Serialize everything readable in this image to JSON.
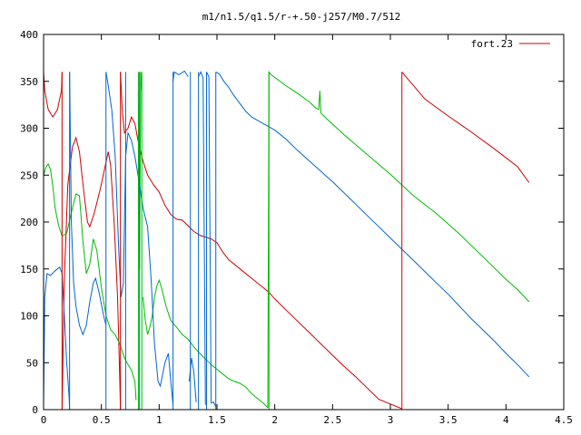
{
  "chart_data": {
    "type": "line",
    "title": "m1/n1.5/q1.5/r-+.50-j257/M0.7/512",
    "xlabel": "",
    "ylabel": "",
    "xlim": [
      0,
      4.5
    ],
    "ylim": [
      0,
      400
    ],
    "x_ticks": [
      0,
      0.5,
      1,
      1.5,
      2,
      2.5,
      3,
      3.5,
      4,
      4.5
    ],
    "x_tick_labels": [
      "0",
      "0.5",
      "1",
      "1.5",
      "2",
      "2.5",
      "3",
      "3.5",
      "4",
      "4.5"
    ],
    "y_ticks": [
      0,
      50,
      100,
      150,
      200,
      250,
      300,
      350,
      400
    ],
    "y_tick_labels": [
      "0",
      "50",
      "100",
      "150",
      "200",
      "250",
      "300",
      "350",
      "400"
    ],
    "grid": false,
    "legend": {
      "position": "top-right",
      "entries": [
        "fort.23"
      ]
    },
    "series": [
      {
        "name": "fort.23",
        "color": "#cc0000",
        "segments": [
          [
            [
              0.0,
              360
            ],
            [
              0.01,
              340
            ],
            [
              0.04,
              320
            ],
            [
              0.08,
              312
            ],
            [
              0.12,
              320
            ],
            [
              0.155,
              340
            ],
            [
              0.16,
              360
            ]
          ],
          [
            [
              0.16,
              0
            ],
            [
              0.18,
              140
            ],
            [
              0.21,
              240
            ],
            [
              0.25,
              280
            ],
            [
              0.28,
              290
            ],
            [
              0.31,
              275
            ],
            [
              0.35,
              230
            ],
            [
              0.38,
              200
            ],
            [
              0.4,
              195
            ],
            [
              0.44,
              210
            ],
            [
              0.49,
              235
            ],
            [
              0.53,
              258
            ],
            [
              0.56,
              275
            ],
            [
              0.58,
              260
            ],
            [
              0.61,
              200
            ],
            [
              0.64,
              120
            ],
            [
              0.66,
              30
            ],
            [
              0.665,
              0
            ]
          ],
          [
            [
              0.665,
              360
            ],
            [
              0.68,
              320
            ],
            [
              0.7,
              295
            ],
            [
              0.73,
              300
            ],
            [
              0.76,
              312
            ],
            [
              0.79,
              305
            ],
            [
              0.82,
              285
            ],
            [
              0.86,
              265
            ],
            [
              0.9,
              250
            ],
            [
              0.95,
              240
            ],
            [
              1.0,
              232
            ],
            [
              1.05,
              218
            ],
            [
              1.1,
              208
            ],
            [
              1.15,
              203
            ],
            [
              1.2,
              202
            ],
            [
              1.25,
              196
            ],
            [
              1.3,
              190
            ],
            [
              1.35,
              186
            ],
            [
              1.4,
              184
            ],
            [
              1.45,
              182
            ],
            [
              1.5,
              178
            ],
            [
              1.55,
              168
            ],
            [
              1.6,
              160
            ],
            [
              1.7,
              150
            ],
            [
              1.8,
              140
            ],
            [
              1.9,
              130
            ],
            [
              1.95,
              125
            ],
            [
              2.0,
              118
            ],
            [
              2.1,
              106
            ],
            [
              2.2,
              94
            ],
            [
              2.3,
              82
            ],
            [
              2.4,
              70
            ],
            [
              2.5,
              58
            ],
            [
              2.6,
              46
            ],
            [
              2.7,
              35
            ],
            [
              2.8,
              23
            ],
            [
              2.9,
              11
            ],
            [
              3.0,
              6
            ],
            [
              3.1,
              1
            ]
          ],
          [
            [
              3.1,
              360
            ],
            [
              3.3,
              331
            ],
            [
              3.5,
              313
            ],
            [
              3.7,
              296
            ],
            [
              3.9,
              278
            ],
            [
              4.1,
              259
            ],
            [
              4.2,
              242
            ]
          ]
        ]
      },
      {
        "name": "",
        "color": "#00bb00",
        "segments": [
          [
            [
              0.0,
              250
            ],
            [
              0.02,
              258
            ],
            [
              0.04,
              262
            ],
            [
              0.06,
              256
            ],
            [
              0.08,
              238
            ],
            [
              0.1,
              215
            ],
            [
              0.13,
              196
            ],
            [
              0.16,
              185
            ],
            [
              0.2,
              188
            ],
            [
              0.24,
              210
            ],
            [
              0.28,
              230
            ],
            [
              0.31,
              228
            ],
            [
              0.34,
              180
            ],
            [
              0.37,
              145
            ],
            [
              0.4,
              155
            ],
            [
              0.43,
              182
            ],
            [
              0.46,
              170
            ],
            [
              0.5,
              130
            ],
            [
              0.54,
              100
            ],
            [
              0.58,
              85
            ],
            [
              0.62,
              80
            ],
            [
              0.66,
              70
            ],
            [
              0.7,
              55
            ],
            [
              0.73,
              48
            ],
            [
              0.76,
              42
            ],
            [
              0.79,
              30
            ],
            [
              0.8,
              10
            ]
          ],
          [
            [
              0.82,
              340
            ],
            [
              0.83,
              150
            ],
            [
              0.84,
              360
            ],
            [
              0.85,
              340
            ]
          ],
          [
            [
              0.86,
              120
            ],
            [
              0.88,
              95
            ],
            [
              0.9,
              80
            ],
            [
              0.92,
              88
            ],
            [
              0.94,
              100
            ],
            [
              0.96,
              120
            ],
            [
              0.98,
              132
            ],
            [
              1.0,
              138
            ],
            [
              1.02,
              130
            ],
            [
              1.06,
              110
            ],
            [
              1.1,
              95
            ],
            [
              1.15,
              88
            ],
            [
              1.2,
              80
            ],
            [
              1.25,
              75
            ],
            [
              1.3,
              67
            ],
            [
              1.35,
              60
            ],
            [
              1.4,
              54
            ],
            [
              1.45,
              48
            ],
            [
              1.5,
              43
            ],
            [
              1.55,
              38
            ],
            [
              1.6,
              33
            ],
            [
              1.65,
              30
            ],
            [
              1.7,
              28
            ],
            [
              1.75,
              24
            ],
            [
              1.8,
              17
            ],
            [
              1.85,
              12
            ],
            [
              1.9,
              7
            ],
            [
              1.94,
              2
            ]
          ],
          [
            [
              1.94,
              2
            ],
            [
              1.95,
              360
            ],
            [
              1.97,
              357
            ],
            [
              2.1,
              345
            ],
            [
              2.2,
              337
            ],
            [
              2.3,
              328
            ],
            [
              2.35,
              322
            ],
            [
              2.38,
              320
            ],
            [
              2.39,
              340
            ],
            [
              2.4,
              316
            ],
            [
              2.45,
              310
            ],
            [
              2.6,
              293
            ],
            [
              2.8,
              272
            ],
            [
              3.0,
              251
            ],
            [
              3.2,
              228
            ],
            [
              3.4,
              209
            ],
            [
              3.6,
              187
            ],
            [
              3.8,
              163
            ],
            [
              4.0,
              139
            ],
            [
              4.1,
              128
            ],
            [
              4.2,
              115
            ]
          ]
        ]
      },
      {
        "name": "",
        "color": "#0066cc",
        "segments": [
          [
            [
              0.0,
              5
            ],
            [
              0.01,
              120
            ],
            [
              0.03,
              145
            ],
            [
              0.06,
              143
            ],
            [
              0.1,
              148
            ],
            [
              0.14,
              152
            ],
            [
              0.16,
              145
            ],
            [
              0.18,
              100
            ],
            [
              0.2,
              50
            ],
            [
              0.22,
              15
            ],
            [
              0.225,
              0
            ]
          ],
          [
            [
              0.225,
              360
            ],
            [
              0.24,
              200
            ],
            [
              0.26,
              135
            ],
            [
              0.28,
              110
            ],
            [
              0.31,
              90
            ],
            [
              0.34,
              80
            ],
            [
              0.37,
              90
            ],
            [
              0.4,
              115
            ],
            [
              0.43,
              135
            ],
            [
              0.45,
              140
            ],
            [
              0.48,
              125
            ],
            [
              0.52,
              100
            ],
            [
              0.54,
              90
            ]
          ],
          [
            [
              0.54,
              360
            ],
            [
              0.56,
              345
            ],
            [
              0.59,
              320
            ],
            [
              0.62,
              270
            ],
            [
              0.65,
              170
            ],
            [
              0.67,
              120
            ],
            [
              0.69,
              135
            ],
            [
              0.71,
              270
            ],
            [
              0.73,
              295
            ],
            [
              0.76,
              287
            ],
            [
              0.79,
              270
            ],
            [
              0.83,
              240
            ],
            [
              0.86,
              215
            ],
            [
              0.9,
              195
            ],
            [
              0.93,
              140
            ],
            [
              0.96,
              70
            ],
            [
              0.99,
              30
            ],
            [
              1.01,
              25
            ],
            [
              1.05,
              50
            ],
            [
              1.08,
              60
            ],
            [
              1.1,
              30
            ],
            [
              1.12,
              5
            ]
          ],
          [
            [
              1.12,
              350
            ],
            [
              1.13,
              360
            ],
            [
              1.17,
              357
            ],
            [
              1.22,
              361
            ],
            [
              1.25,
              355
            ]
          ],
          [
            [
              1.26,
              30
            ],
            [
              1.28,
              55
            ],
            [
              1.3,
              40
            ],
            [
              1.32,
              8
            ]
          ],
          [
            [
              1.34,
              355
            ],
            [
              1.36,
              360
            ],
            [
              1.38,
              354
            ],
            [
              1.4,
              5
            ]
          ],
          [
            [
              1.41,
              360
            ],
            [
              1.43,
              355
            ],
            [
              1.45,
              7
            ],
            [
              1.47,
              8
            ],
            [
              1.49,
              3
            ]
          ],
          [
            [
              1.49,
              360
            ],
            [
              1.52,
              358
            ],
            [
              1.56,
              350
            ],
            [
              1.6,
              344
            ],
            [
              1.64,
              336
            ],
            [
              1.7,
              326
            ],
            [
              1.75,
              318
            ],
            [
              1.8,
              312
            ],
            [
              1.9,
              305
            ],
            [
              2.0,
              298
            ],
            [
              2.1,
              288
            ],
            [
              2.2,
              276
            ],
            [
              2.3,
              265
            ],
            [
              2.4,
              254
            ],
            [
              2.5,
              243
            ],
            [
              2.6,
              231
            ],
            [
              2.7,
              219
            ],
            [
              2.8,
              207
            ],
            [
              2.9,
              195
            ],
            [
              3.0,
              183
            ],
            [
              3.1,
              171
            ],
            [
              3.2,
              159
            ],
            [
              3.3,
              147
            ],
            [
              3.4,
              135
            ],
            [
              3.5,
              123
            ],
            [
              3.6,
              110
            ],
            [
              3.7,
              97
            ],
            [
              3.8,
              85
            ],
            [
              3.9,
              73
            ],
            [
              4.0,
              60
            ],
            [
              4.1,
              48
            ],
            [
              4.2,
              35
            ]
          ]
        ]
      }
    ],
    "vertical_lines": [
      {
        "color": "#0066cc",
        "x": [
          0.225,
          0.54,
          0.71,
          0.83,
          1.12,
          1.27,
          1.34,
          1.41,
          1.49
        ]
      },
      {
        "color": "#cc0000",
        "x": [
          0.16,
          0.665,
          3.1
        ]
      },
      {
        "color": "#00bb00",
        "x": [
          0.82,
          0.85,
          1.95
        ]
      }
    ]
  }
}
